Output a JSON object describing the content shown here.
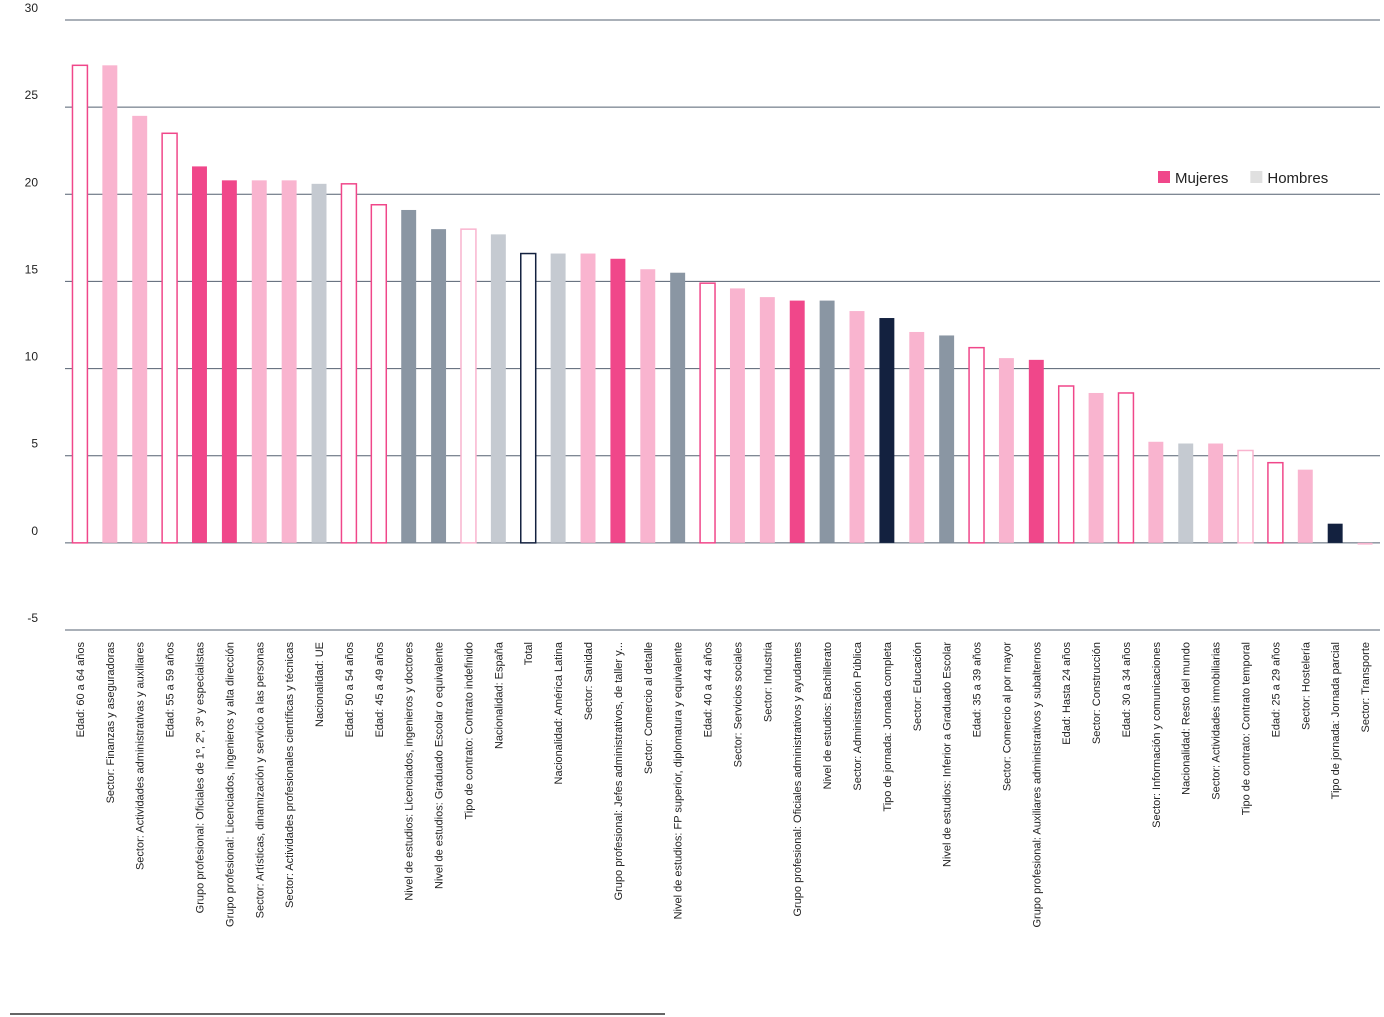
{
  "chart_data": {
    "type": "bar",
    "categories": [
      "Edad: 60 a 64 años",
      "Sector: Finanzas y aseguradoras",
      "Sector: Actividades administrativas y auxiliares",
      "Edad: 55 a 59 años",
      "Grupo profesional: Oficiales de 1º, 2º, 3º y especialistas",
      "Grupo profesional: Licenciados, ingenieros y alta dirección",
      "Sector: Artísticas, dinamización y servicio a las personas",
      "Sector: Actividades profesionales científicas y técnicas",
      "Nacionalidad: UE",
      "Edad: 50 a 54 años",
      "Edad: 45 a 49 años",
      "Nivel de estudios: Licenciados, ingenieros y doctores",
      "Nivel de estudios: Graduado Escolar o equivalente",
      "Tipo de contrato: Contrato indefinido",
      "Nacionalidad: España",
      "Total",
      "Nacionalidad: América Latina",
      "Sector: Sanidad",
      "Grupo profesional: Jefes administrativos, de taller y...",
      "Sector: Comercio al detalle",
      "Nivel de estudios: FP superior, diplomatura y equivalente",
      "Edad: 40 a 44 años",
      "Sector: Servicios sociales",
      "Sector: Industria",
      "Grupo profesional: Oficiales administrativos y ayudantes",
      "Nivel de estudios: Bachillerato",
      "Sector: Administración Pública",
      "Tipo de jornada: Jornada completa",
      "Sector: Educación",
      "Nivel de estudios: Inferior a Graduado Escolar",
      "Edad: 35 a 39 años",
      "Sector: Comercio al por mayor",
      "Grupo profesional: Auxiliares administrativos y subalternos",
      "Edad: Hasta 24 años",
      "Sector: Construcción",
      "Edad: 30 a 34 años",
      "Sector: Información y comunicaciones",
      "Nacionalidad: Resto del mundo",
      "Sector: Actividades inmobiliarias",
      "Tipo de contrato: Contrato temporal",
      "Edad: 25 a 29 años",
      "Sector: Hostelería",
      "Tipo de jornada: Jornada parcial",
      "Sector: Transporte"
    ],
    "values": [
      27.4,
      27.4,
      24.5,
      23.5,
      21.6,
      20.8,
      20.8,
      20.8,
      20.6,
      20.6,
      19.4,
      19.1,
      18.0,
      18.0,
      17.7,
      16.6,
      16.6,
      16.6,
      16.3,
      15.7,
      15.5,
      14.9,
      14.6,
      14.1,
      13.9,
      13.9,
      13.3,
      12.9,
      12.1,
      11.9,
      11.2,
      10.6,
      10.5,
      9.0,
      8.6,
      8.6,
      5.8,
      5.7,
      5.7,
      5.3,
      4.6,
      4.2,
      1.1,
      -0.1
    ],
    "colors": [
      "#f0478a",
      "#f9b4cf",
      "#f9b4cf",
      "#f0478a",
      "#f0478a",
      "#f0478a",
      "#f9b4cf",
      "#f9b4cf",
      "#c5cad1",
      "#f0478a",
      "#f0478a",
      "#8a96a3",
      "#8a96a3",
      "#f9b4cf",
      "#c5cad1",
      "#13213f",
      "#c5cad1",
      "#f9b4cf",
      "#f0478a",
      "#f9b4cf",
      "#8a96a3",
      "#f0478a",
      "#f9b4cf",
      "#f9b4cf",
      "#f0478a",
      "#8a96a3",
      "#f9b4cf",
      "#13213f",
      "#f9b4cf",
      "#8a96a3",
      "#f0478a",
      "#f9b4cf",
      "#f0478a",
      "#f0478a",
      "#f9b4cf",
      "#f0478a",
      "#f9b4cf",
      "#c5cad1",
      "#f9b4cf",
      "#f9b4cf",
      "#f0478a",
      "#f9b4cf",
      "#13213f",
      "#f9b4cf"
    ],
    "styles": [
      "outline",
      "fill",
      "fill",
      "outline",
      "fill",
      "fill",
      "fill",
      "fill",
      "fill",
      "outline",
      "outline",
      "fill",
      "fill",
      "outline",
      "fill",
      "outline",
      "fill",
      "fill",
      "fill",
      "fill",
      "fill",
      "outline",
      "fill",
      "fill",
      "fill",
      "fill",
      "fill",
      "fill",
      "fill",
      "fill",
      "outline",
      "fill",
      "fill",
      "outline",
      "fill",
      "outline",
      "fill",
      "fill",
      "fill",
      "outline",
      "outline",
      "fill",
      "fill",
      "fill"
    ],
    "legend": [
      {
        "name": "Mujeres",
        "color": "#f0478a"
      },
      {
        "name": "Hombres",
        "color": "#e0e0e0"
      }
    ],
    "ylim": [
      -5,
      30
    ],
    "yticks": [
      -5,
      0,
      5,
      10,
      15,
      20,
      25,
      30
    ],
    "grid": true
  }
}
